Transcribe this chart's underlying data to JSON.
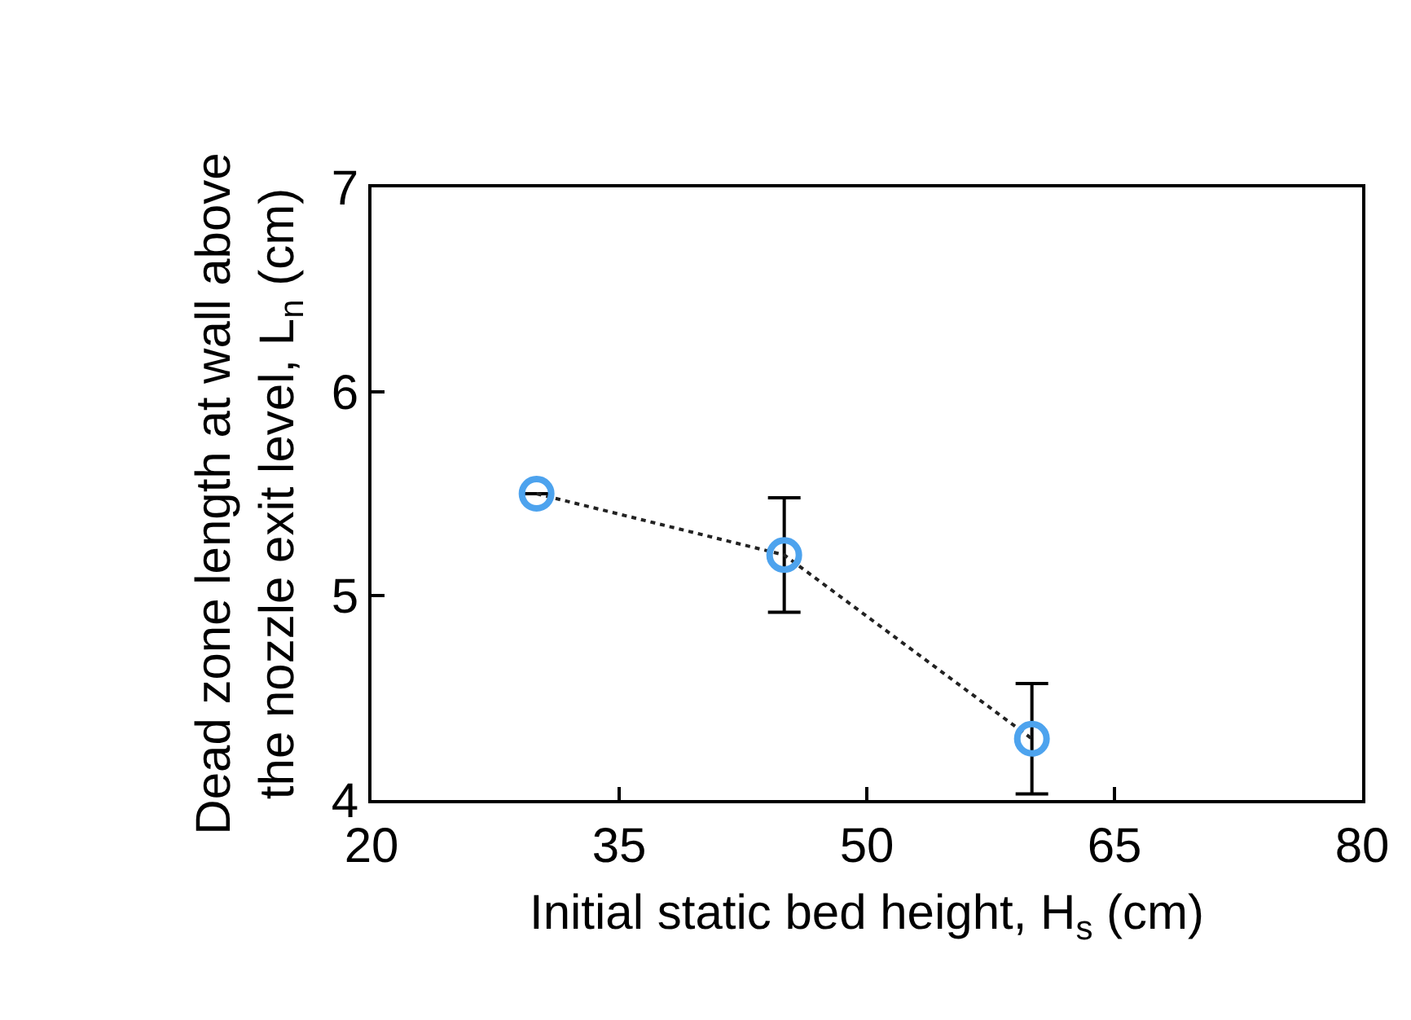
{
  "chart_data": {
    "type": "line",
    "xlabel": "Initial static bed height, H$_{s}$ (cm)",
    "ylabel": "Dead zone length at wall above\nthe nozzle exit level, L$_{n}$ (cm)",
    "x": [
      30,
      45,
      60
    ],
    "series": [
      {
        "color": "#4da3ee",
        "values": [
          5.5,
          5.2,
          4.3
        ],
        "errors": [
          0,
          0.28,
          0.27
        ]
      }
    ],
    "xlim": [
      20,
      80
    ],
    "xticks": [
      20,
      35,
      50,
      65,
      80
    ],
    "ylim": [
      4,
      7
    ],
    "yticks": [
      4,
      5,
      6,
      7
    ],
    "grid": false,
    "marker": "circle",
    "line_style": "dotted"
  }
}
